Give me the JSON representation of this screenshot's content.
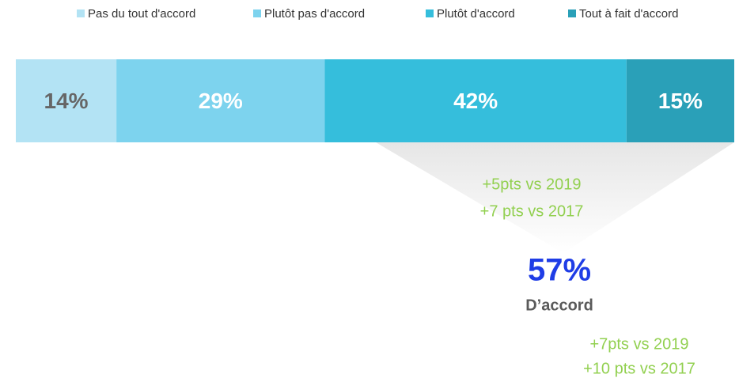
{
  "chart_data": {
    "type": "bar",
    "orientation": "horizontal",
    "stacked": true,
    "categories": [
      null
    ],
    "xlim": [
      0,
      100
    ],
    "series": [
      {
        "name": "Pas du tout d'accord",
        "color": "#b3e3f4",
        "label_color": "#666666",
        "values": [
          14
        ],
        "value_labels": [
          "14%"
        ]
      },
      {
        "name": "Plutôt pas d'accord",
        "color": "#7dd3ee",
        "label_color": "#ffffff",
        "values": [
          29
        ],
        "value_labels": [
          "29%"
        ]
      },
      {
        "name": "Plutôt d'accord",
        "color": "#35bedc",
        "label_color": "#ffffff",
        "values": [
          42
        ],
        "value_labels": [
          "42%"
        ]
      },
      {
        "name": "Tout à fait d'accord",
        "color": "#2aa0b8",
        "label_color": "#ffffff",
        "values": [
          15
        ],
        "value_labels": [
          "15%"
        ]
      }
    ],
    "annotations": [
      {
        "text": "+5pts vs 2019"
      },
      {
        "text": "+7 pts vs 2017"
      },
      {
        "text": "57%"
      },
      {
        "text": "D’accord"
      },
      {
        "text": "+7pts vs 2019"
      },
      {
        "text": "+10 pts vs 2017"
      }
    ]
  }
}
